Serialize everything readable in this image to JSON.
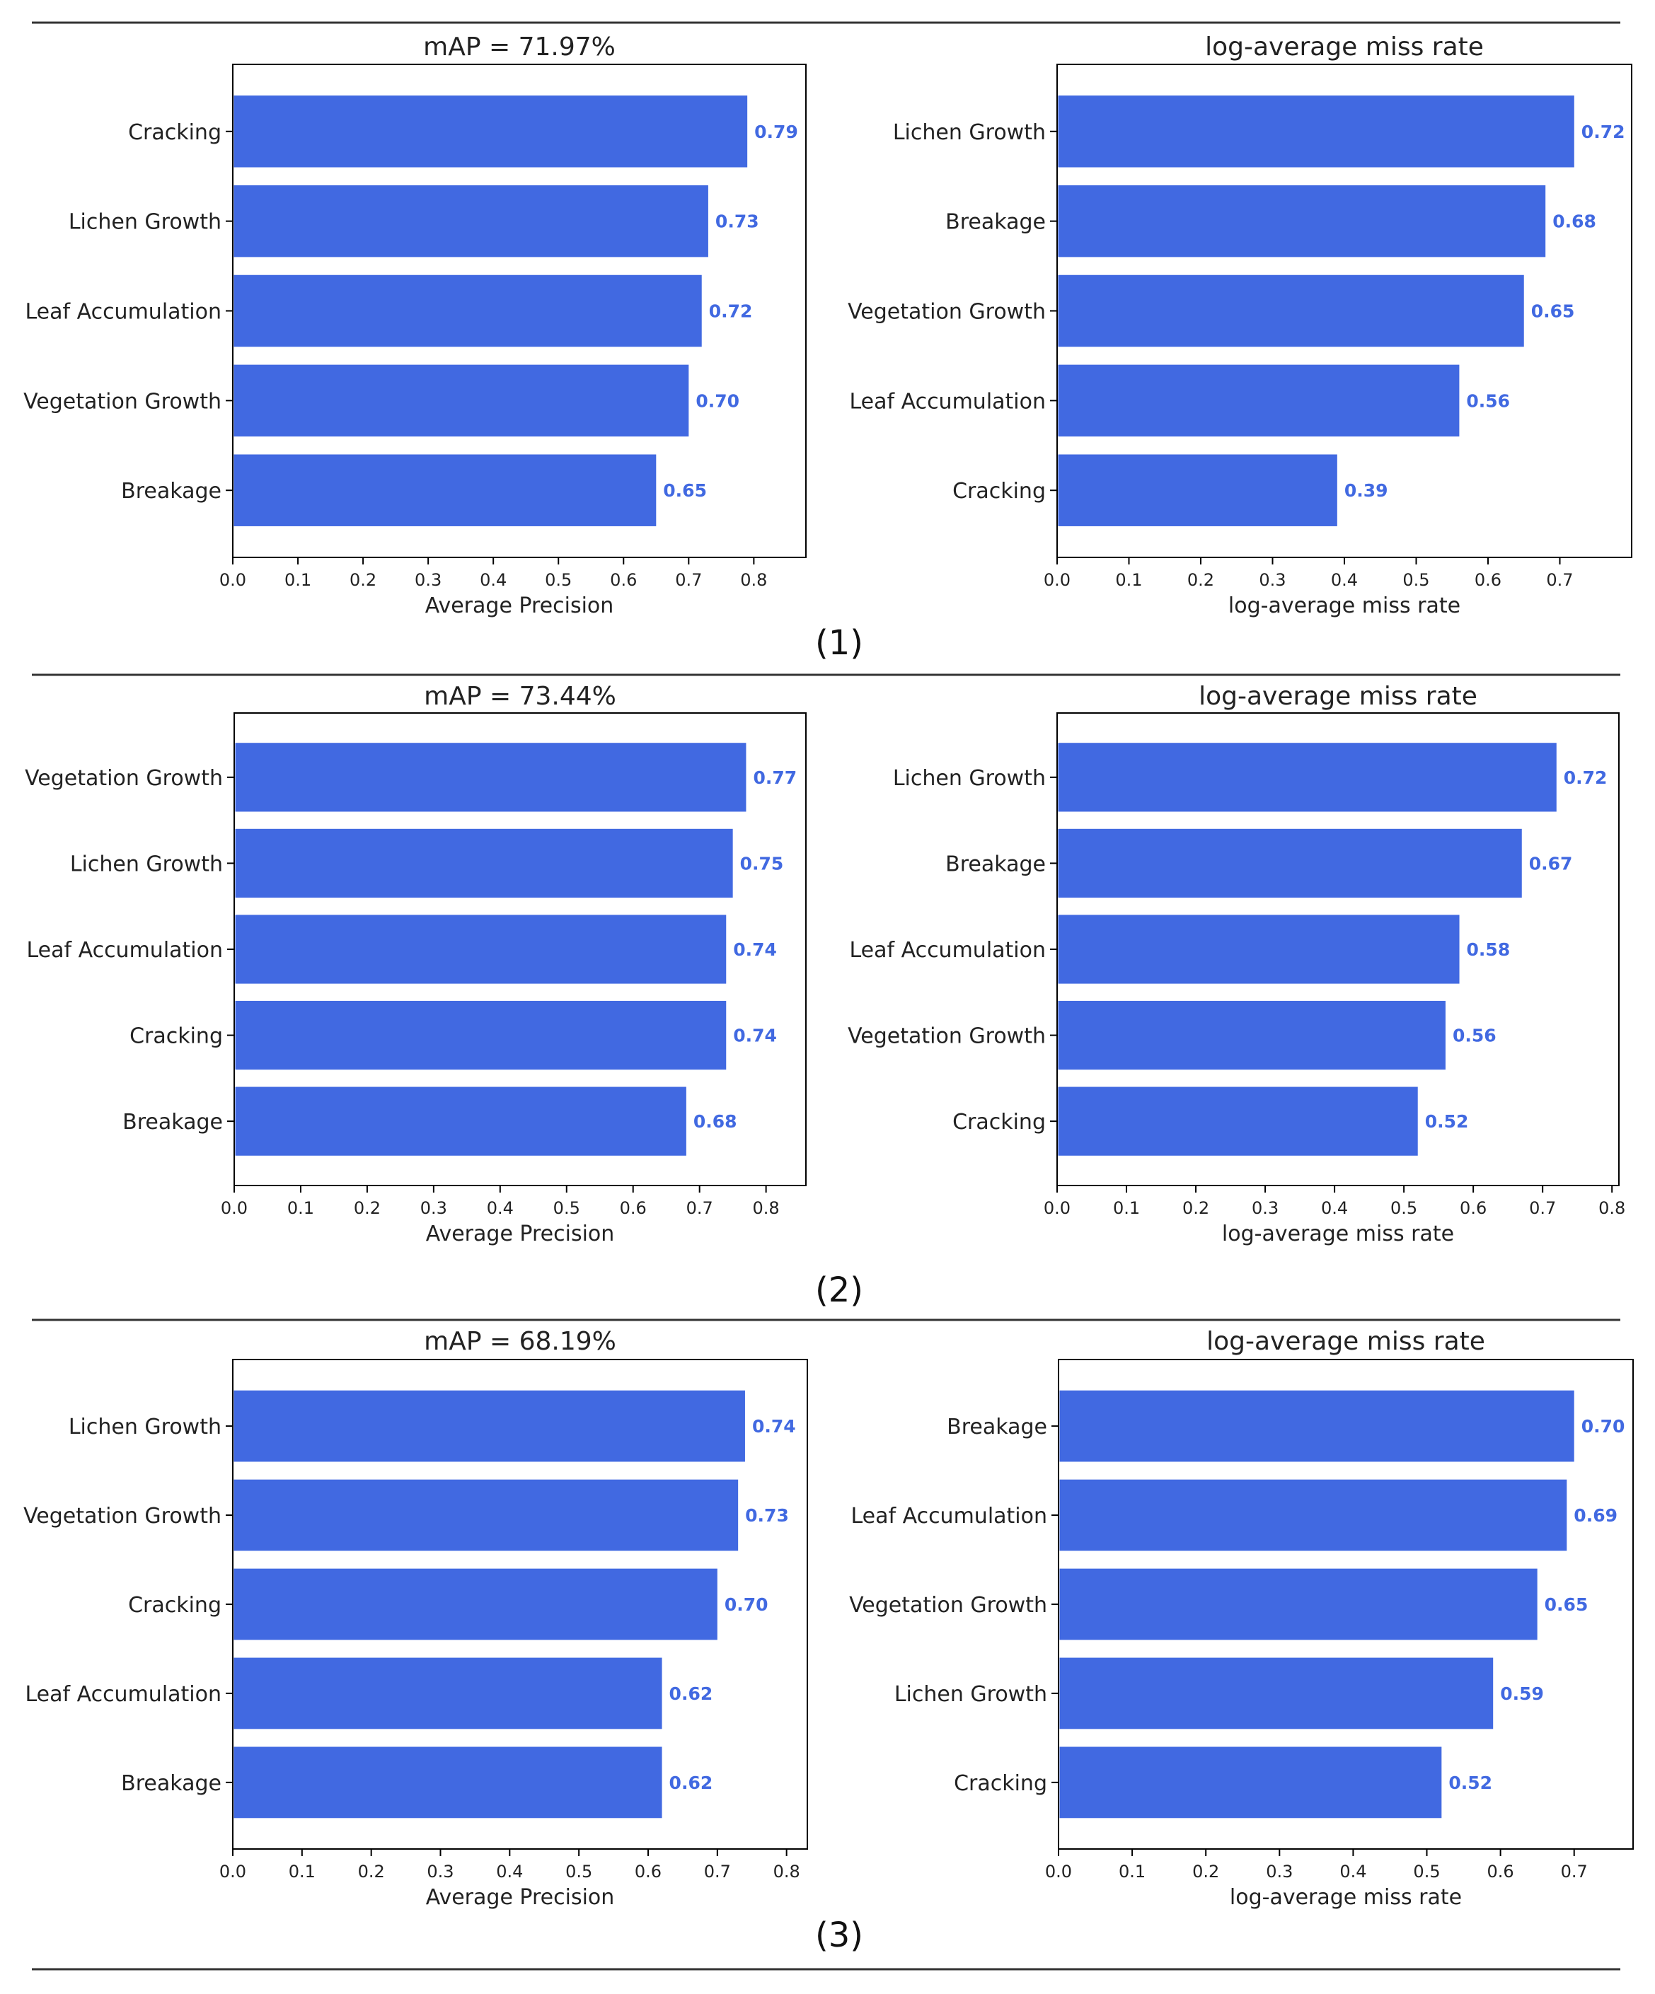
{
  "chart_data": [
    {
      "type": "bar",
      "orientation": "horizontal",
      "title": "mAP = 71.97%",
      "xlabel": "Average Precision",
      "ylabel": "",
      "xlim": [
        0,
        0.88
      ],
      "xticks": [
        "0.0",
        "0.1",
        "0.2",
        "0.3",
        "0.4",
        "0.5",
        "0.6",
        "0.7",
        "0.8"
      ],
      "categories": [
        "Cracking",
        "Lichen Growth",
        "Leaf Accumulation",
        "Vegetation Growth",
        "Breakage"
      ],
      "values": [
        0.79,
        0.73,
        0.72,
        0.7,
        0.65
      ],
      "value_labels": [
        "0.79",
        "0.73",
        "0.72",
        "0.70",
        "0.65"
      ]
    },
    {
      "type": "bar",
      "orientation": "horizontal",
      "title": "log-average miss rate",
      "xlabel": "log-average miss rate",
      "ylabel": "",
      "xlim": [
        0,
        0.8
      ],
      "xticks": [
        "0.0",
        "0.1",
        "0.2",
        "0.3",
        "0.4",
        "0.5",
        "0.6",
        "0.7"
      ],
      "categories": [
        "Lichen Growth",
        "Breakage",
        "Vegetation Growth",
        "Leaf Accumulation",
        "Cracking"
      ],
      "values": [
        0.72,
        0.68,
        0.65,
        0.56,
        0.39
      ],
      "value_labels": [
        "0.72",
        "0.68",
        "0.65",
        "0.56",
        "0.39"
      ]
    },
    {
      "type": "bar",
      "orientation": "horizontal",
      "title": "mAP = 73.44%",
      "xlabel": "Average Precision",
      "ylabel": "",
      "xlim": [
        0,
        0.86
      ],
      "xticks": [
        "0.0",
        "0.1",
        "0.2",
        "0.3",
        "0.4",
        "0.5",
        "0.6",
        "0.7",
        "0.8"
      ],
      "categories": [
        "Vegetation Growth",
        "Lichen Growth",
        "Leaf Accumulation",
        "Cracking",
        "Breakage"
      ],
      "values": [
        0.77,
        0.75,
        0.74,
        0.74,
        0.68
      ],
      "value_labels": [
        "0.77",
        "0.75",
        "0.74",
        "0.74",
        "0.68"
      ]
    },
    {
      "type": "bar",
      "orientation": "horizontal",
      "title": "log-average miss rate",
      "xlabel": "log-average miss rate",
      "ylabel": "",
      "xlim": [
        0,
        0.81
      ],
      "xticks": [
        "0.0",
        "0.1",
        "0.2",
        "0.3",
        "0.4",
        "0.5",
        "0.6",
        "0.7",
        "0.8"
      ],
      "categories": [
        "Lichen Growth",
        "Breakage",
        "Leaf Accumulation",
        "Vegetation Growth",
        "Cracking"
      ],
      "values": [
        0.72,
        0.67,
        0.58,
        0.56,
        0.52
      ],
      "value_labels": [
        "0.72",
        "0.67",
        "0.58",
        "0.56",
        "0.52"
      ]
    },
    {
      "type": "bar",
      "orientation": "horizontal",
      "title": "mAP = 68.19%",
      "xlabel": "Average Precision",
      "ylabel": "",
      "xlim": [
        0,
        0.83
      ],
      "xticks": [
        "0.0",
        "0.1",
        "0.2",
        "0.3",
        "0.4",
        "0.5",
        "0.6",
        "0.7",
        "0.8"
      ],
      "categories": [
        "Lichen Growth",
        "Vegetation Growth",
        "Cracking",
        "Leaf Accumulation",
        "Breakage"
      ],
      "values": [
        0.74,
        0.73,
        0.7,
        0.62,
        0.62
      ],
      "value_labels": [
        "0.74",
        "0.73",
        "0.70",
        "0.62",
        "0.62"
      ]
    },
    {
      "type": "bar",
      "orientation": "horizontal",
      "title": "log-average miss rate",
      "xlabel": "log-average miss rate",
      "ylabel": "",
      "xlim": [
        0,
        0.78
      ],
      "xticks": [
        "0.0",
        "0.1",
        "0.2",
        "0.3",
        "0.4",
        "0.5",
        "0.6",
        "0.7"
      ],
      "categories": [
        "Breakage",
        "Leaf Accumulation",
        "Vegetation Growth",
        "Lichen Growth",
        "Cracking"
      ],
      "values": [
        0.7,
        0.69,
        0.65,
        0.59,
        0.52
      ],
      "value_labels": [
        "0.70",
        "0.69",
        "0.65",
        "0.59",
        "0.52"
      ]
    }
  ],
  "panels": [
    {
      "label": "(1)"
    },
    {
      "label": "(2)"
    },
    {
      "label": "(3)"
    }
  ],
  "colors": {
    "bar": "#4169e1",
    "value_label": "#4169e1",
    "axes": "#000000",
    "rule": "#333333",
    "text": "#222222"
  }
}
